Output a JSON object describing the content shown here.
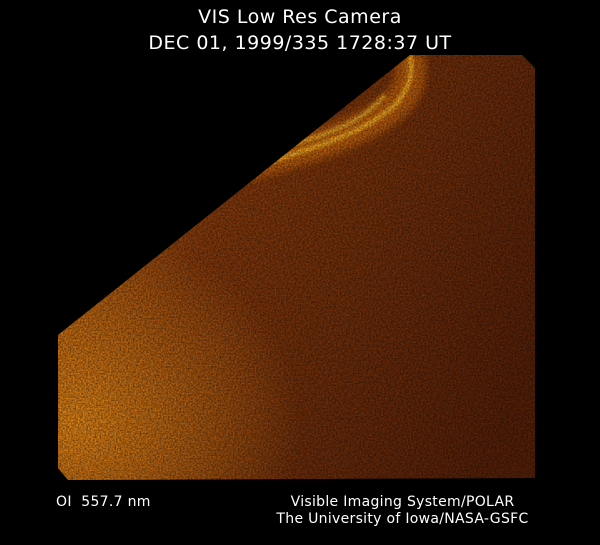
{
  "header": {
    "title": "VIS Low Res Camera",
    "timestamp": "DEC 01, 1999/335 1728:37 UT"
  },
  "image": {
    "subject": "auroral emission image",
    "colors": {
      "dim": "#5a2208",
      "mid": "#a04a10",
      "bright": "#ffb020"
    }
  },
  "footer": {
    "filter": "OI  557.7 nm",
    "credit_line1": "Visible Imaging System/POLAR",
    "credit_line2": "The University of Iowa/NASA-GSFC"
  }
}
